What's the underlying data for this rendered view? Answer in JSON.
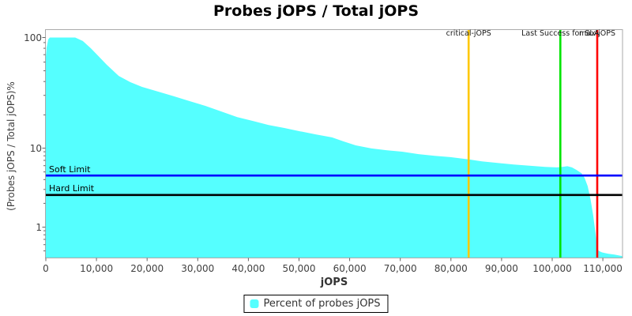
{
  "chart_data": {
    "type": "area",
    "title": "Probes jOPS / Total jOPS",
    "xlabel": "jOPS",
    "ylabel": "(Probes jOPS / Total jOPS)%",
    "x_axis": {
      "min": 0,
      "max": 113900,
      "ticks": [
        {
          "value": 0,
          "label": "0"
        },
        {
          "value": 10000,
          "label": "10,000"
        },
        {
          "value": 20000,
          "label": "20,000"
        },
        {
          "value": 30000,
          "label": "30,000"
        },
        {
          "value": 40000,
          "label": "40,000"
        },
        {
          "value": 50000,
          "label": "50,000"
        },
        {
          "value": 60000,
          "label": "60,000"
        },
        {
          "value": 70000,
          "label": "70,000"
        },
        {
          "value": 80000,
          "label": "80,000"
        },
        {
          "value": 90000,
          "label": "90,000"
        },
        {
          "value": 100000,
          "label": "100,000"
        },
        {
          "value": 110000,
          "label": "110,000"
        }
      ]
    },
    "y_axis": {
      "scale": "log",
      "min": 0.42,
      "max": 117,
      "ticks": [
        {
          "value": 100,
          "label": "100"
        },
        {
          "value": 10,
          "label": "10"
        },
        {
          "value": 1,
          "label": "1"
        }
      ]
    },
    "series": [
      {
        "name": "Percent of probes jOPS",
        "color": "#55FFFF",
        "points": [
          [
            0,
            67
          ],
          [
            150,
            81
          ],
          [
            470,
            96
          ],
          [
            780,
            100
          ],
          [
            5800,
            100
          ],
          [
            7300,
            93
          ],
          [
            8900,
            80
          ],
          [
            10500,
            67
          ],
          [
            12000,
            57
          ],
          [
            14400,
            45
          ],
          [
            16700,
            39.5
          ],
          [
            19000,
            35.8
          ],
          [
            22200,
            32.4
          ],
          [
            25300,
            29.4
          ],
          [
            28400,
            26.6
          ],
          [
            31500,
            24.1
          ],
          [
            34600,
            21.5
          ],
          [
            37800,
            19.1
          ],
          [
            40900,
            17.6
          ],
          [
            44000,
            16.2
          ],
          [
            47100,
            15.2
          ],
          [
            50200,
            14.2
          ],
          [
            53400,
            13.3
          ],
          [
            56500,
            12.5
          ],
          [
            58800,
            11.5
          ],
          [
            61200,
            10.6
          ],
          [
            64300,
            9.9
          ],
          [
            67400,
            9.4
          ],
          [
            70500,
            9.0
          ],
          [
            73600,
            8.4
          ],
          [
            76800,
            8.0
          ],
          [
            79900,
            7.7
          ],
          [
            83500,
            7.2
          ],
          [
            86100,
            6.8
          ],
          [
            89200,
            6.5
          ],
          [
            92400,
            6.2
          ],
          [
            95500,
            6.0
          ],
          [
            98600,
            5.8
          ],
          [
            100900,
            5.7
          ],
          [
            102000,
            5.8
          ],
          [
            103000,
            5.9
          ],
          [
            103900,
            5.7
          ],
          [
            104800,
            5.3
          ],
          [
            105800,
            4.8
          ],
          [
            106400,
            4.2
          ],
          [
            107000,
            3.3
          ],
          [
            107600,
            2.2
          ],
          [
            108100,
            1.4
          ],
          [
            108600,
            0.79
          ],
          [
            108900,
            0.54
          ],
          [
            109200,
            0.5
          ],
          [
            109800,
            0.48
          ],
          [
            111100,
            0.46
          ],
          [
            112300,
            0.45
          ],
          [
            113900,
            0.43
          ]
        ]
      }
    ],
    "markers": {
      "vertical": [
        {
          "label": "critical-jOPS",
          "value": 83500,
          "color": "#FFC800"
        },
        {
          "label": "Last Success for SLA",
          "value": 101600,
          "color": "#00E400"
        },
        {
          "label": "max-jOPS",
          "value": 108900,
          "color": "#FF0000"
        }
      ],
      "horizontal": [
        {
          "label": "Soft Limit",
          "value": 4.5,
          "color": "#0000FF"
        },
        {
          "label": "Hard Limit",
          "value": 2.55,
          "color": "#000000"
        }
      ]
    },
    "legend_position": "bottom",
    "grid": false
  },
  "colors": {
    "plot_border": "#AAAAAA",
    "tick": "#666666",
    "tick_text": "#404040"
  }
}
